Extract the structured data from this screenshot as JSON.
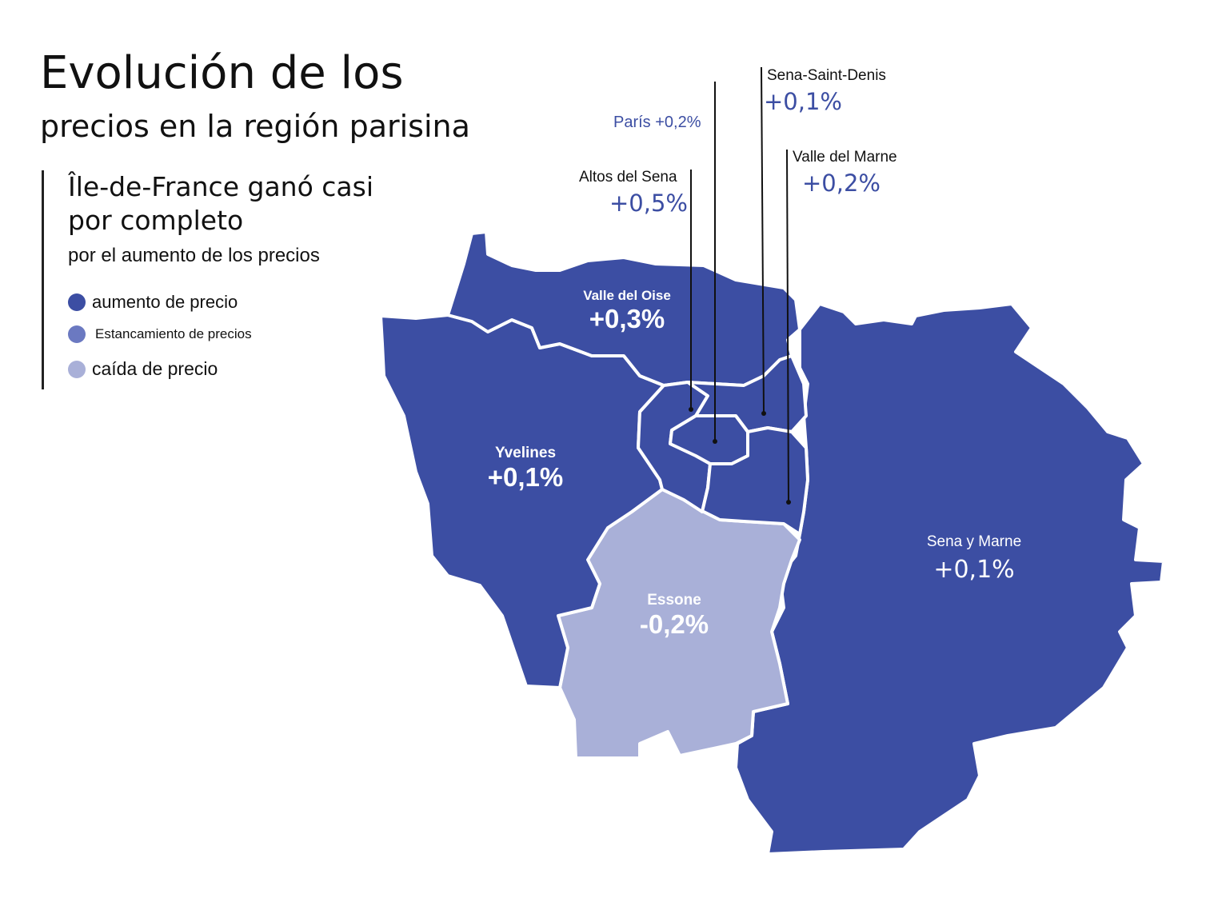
{
  "title": {
    "line1": "Evolución de los",
    "line2": "precios en la región parisina"
  },
  "subtitle": {
    "line1": "Île-de-France ganó casi",
    "line2": "por completo",
    "line3": "por el aumento de los precios"
  },
  "legend": [
    {
      "label": "aumento de precio",
      "color": "#3c4ea3"
    },
    {
      "label": "Estancamiento de precios",
      "color": "#6b79c1"
    },
    {
      "label": "caída de precio",
      "color": "#a9b0d8"
    }
  ],
  "colors": {
    "increase": "#3c4ea3",
    "stagnation": "#6b79c1",
    "decrease": "#a9b0d8",
    "border": "#ffffff"
  },
  "departments": {
    "valle_del_oise": {
      "name": "Valle del Oise",
      "value": "+0,3%",
      "trend": "increase"
    },
    "yvelines": {
      "name": "Yvelines",
      "value": "+0,1%",
      "trend": "increase"
    },
    "essone": {
      "name": "Essone",
      "value": "-0,2%",
      "trend": "decrease"
    },
    "sena_y_marne": {
      "name": "Sena y Marne",
      "value": "+0,1%",
      "trend": "increase"
    }
  },
  "callouts": {
    "paris": {
      "label": "París +0,2%"
    },
    "sena_saint_denis": {
      "name": "Sena-Saint-Denis",
      "value": "+0,1%"
    },
    "valle_del_marne": {
      "name": "Valle del Marne",
      "value": "+0,2%"
    },
    "altos_del_sena": {
      "name": "Altos del Sena",
      "value": "+0,5%"
    }
  }
}
